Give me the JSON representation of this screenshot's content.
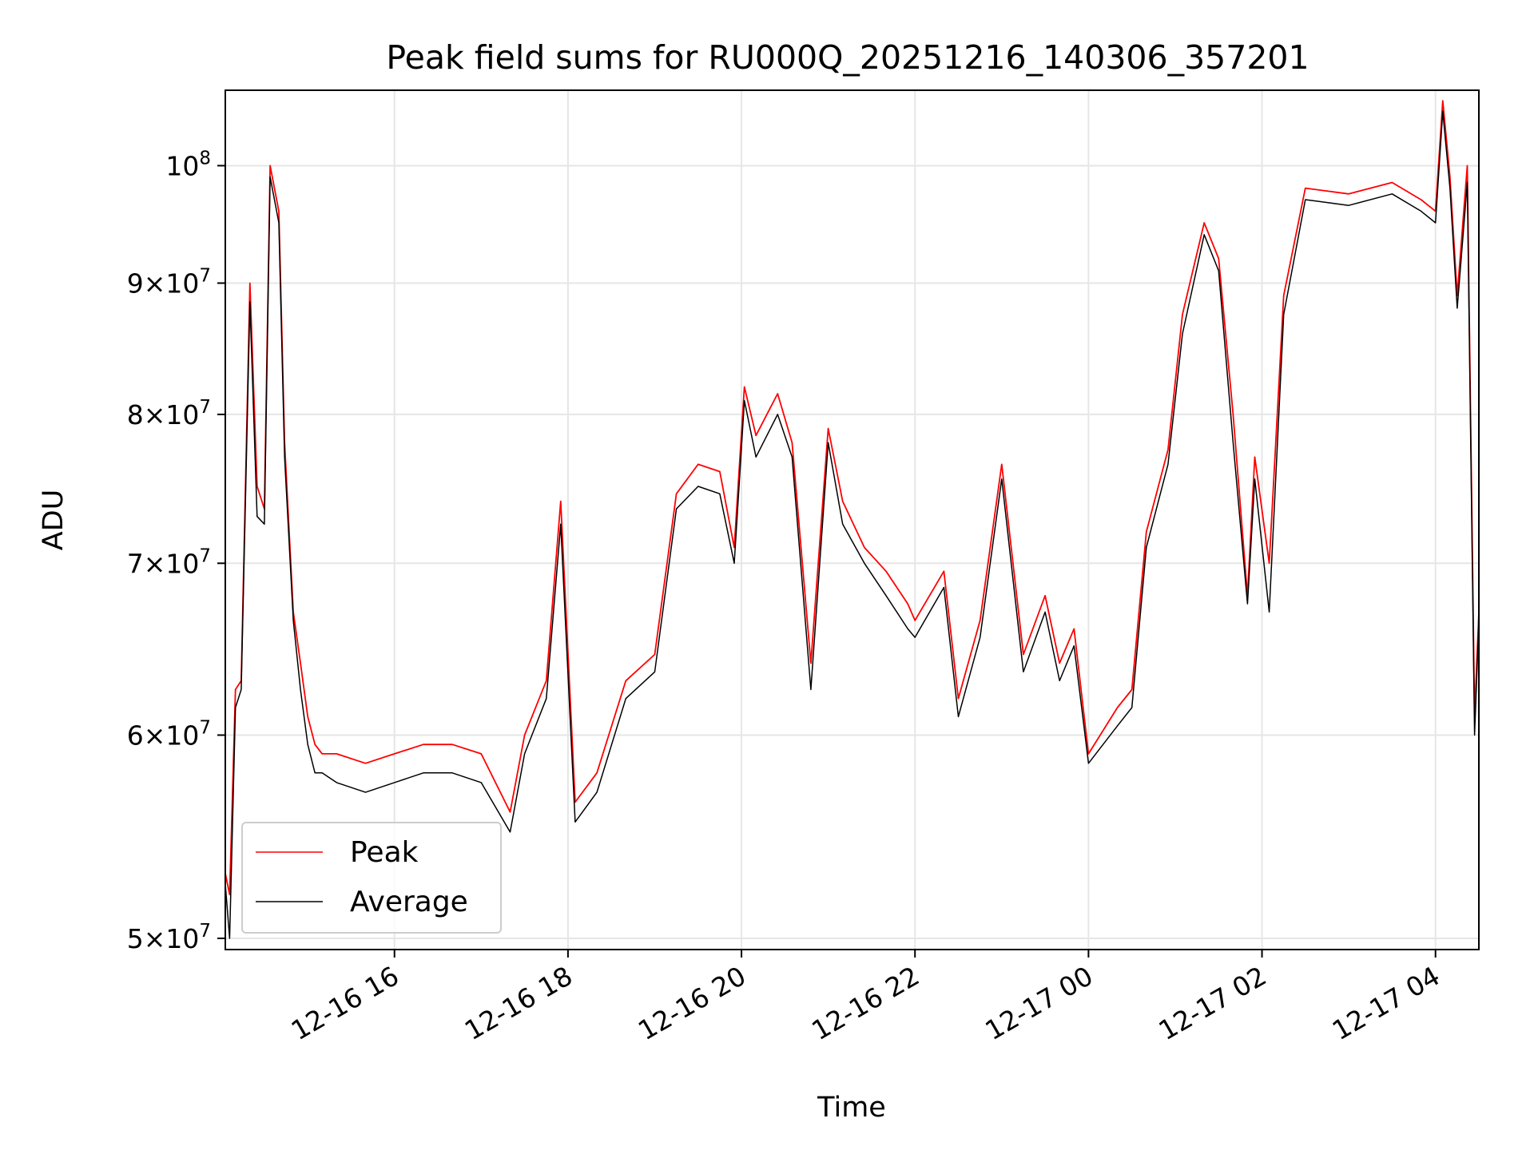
{
  "chart_data": {
    "type": "line",
    "title": "Peak field sums for RU000Q_20251216_140306_357201",
    "xlabel": "Time",
    "ylabel": "ADU",
    "yscale": "log",
    "ylim": [
      49500000,
      107000000
    ],
    "xlim": [
      "2025-12-16 14:03",
      "2025-12-17 04:30"
    ],
    "grid": true,
    "legend_position": "lower-left",
    "x_ticks": [
      {
        "value": "2025-12-16 16:00",
        "label": "12-16 16"
      },
      {
        "value": "2025-12-16 18:00",
        "label": "12-16 18"
      },
      {
        "value": "2025-12-16 20:00",
        "label": "12-16 20"
      },
      {
        "value": "2025-12-16 22:00",
        "label": "12-16 22"
      },
      {
        "value": "2025-12-17 00:00",
        "label": "12-17 00"
      },
      {
        "value": "2025-12-17 02:00",
        "label": "12-17 02"
      },
      {
        "value": "2025-12-17 04:00",
        "label": "12-17 04"
      }
    ],
    "y_ticks": [
      {
        "value": 50000000,
        "mantissa": "5",
        "exponent": "7"
      },
      {
        "value": 60000000,
        "mantissa": "6",
        "exponent": "7"
      },
      {
        "value": 70000000,
        "mantissa": "7",
        "exponent": "7"
      },
      {
        "value": 80000000,
        "mantissa": "8",
        "exponent": "7"
      },
      {
        "value": 90000000,
        "mantissa": "9",
        "exponent": "7"
      },
      {
        "value": 100000000,
        "mantissa": "",
        "exponent": "8"
      }
    ],
    "series": [
      {
        "name": "Peak",
        "color": "#ff0000",
        "x": [
          "2025-12-16 14:03",
          "2025-12-16 14:06",
          "2025-12-16 14:10",
          "2025-12-16 14:14",
          "2025-12-16 14:20",
          "2025-12-16 14:25",
          "2025-12-16 14:30",
          "2025-12-16 14:34",
          "2025-12-16 14:40",
          "2025-12-16 14:44",
          "2025-12-16 14:50",
          "2025-12-16 14:55",
          "2025-12-16 15:00",
          "2025-12-16 15:05",
          "2025-12-16 15:10",
          "2025-12-16 15:20",
          "2025-12-16 15:40",
          "2025-12-16 16:00",
          "2025-12-16 16:20",
          "2025-12-16 16:40",
          "2025-12-16 17:00",
          "2025-12-16 17:20",
          "2025-12-16 17:30",
          "2025-12-16 17:45",
          "2025-12-16 17:55",
          "2025-12-16 18:05",
          "2025-12-16 18:20",
          "2025-12-16 18:40",
          "2025-12-16 19:00",
          "2025-12-16 19:15",
          "2025-12-16 19:30",
          "2025-12-16 19:45",
          "2025-12-16 19:55",
          "2025-12-16 20:02",
          "2025-12-16 20:10",
          "2025-12-16 20:25",
          "2025-12-16 20:35",
          "2025-12-16 20:48",
          "2025-12-16 21:00",
          "2025-12-16 21:10",
          "2025-12-16 21:25",
          "2025-12-16 21:40",
          "2025-12-16 21:55",
          "2025-12-16 22:00",
          "2025-12-16 22:20",
          "2025-12-16 22:30",
          "2025-12-16 22:45",
          "2025-12-16 23:00",
          "2025-12-16 23:15",
          "2025-12-16 23:30",
          "2025-12-16 23:40",
          "2025-12-16 23:50",
          "2025-12-17 00:00",
          "2025-12-17 00:20",
          "2025-12-17 00:30",
          "2025-12-17 00:40",
          "2025-12-17 00:55",
          "2025-12-17 01:05",
          "2025-12-17 01:20",
          "2025-12-17 01:30",
          "2025-12-17 01:40",
          "2025-12-17 01:50",
          "2025-12-17 01:55",
          "2025-12-17 02:05",
          "2025-12-17 02:15",
          "2025-12-17 02:30",
          "2025-12-17 03:00",
          "2025-12-17 03:30",
          "2025-12-17 03:50",
          "2025-12-17 04:00",
          "2025-12-17 04:05",
          "2025-12-17 04:10",
          "2025-12-17 04:15",
          "2025-12-17 04:22",
          "2025-12-17 04:27",
          "2025-12-17 04:30"
        ],
        "y": [
          53000000,
          52000000,
          62500000,
          63000000,
          90000000,
          75000000,
          73500000,
          100000000,
          96000000,
          78000000,
          67000000,
          64000000,
          61000000,
          59500000,
          59000000,
          59000000,
          58500000,
          59000000,
          59500000,
          59500000,
          59000000,
          56000000,
          60000000,
          63000000,
          74000000,
          56500000,
          58000000,
          63000000,
          64500000,
          74500000,
          76500000,
          76000000,
          71000000,
          82000000,
          78500000,
          81500000,
          78000000,
          64000000,
          79000000,
          74000000,
          71000000,
          69500000,
          67500000,
          66500000,
          69500000,
          62000000,
          66500000,
          76500000,
          64500000,
          68000000,
          64000000,
          66000000,
          59000000,
          61500000,
          62500000,
          72000000,
          77500000,
          87500000,
          95000000,
          92000000,
          80000000,
          68000000,
          77000000,
          70000000,
          89000000,
          98000000,
          97500000,
          98500000,
          97000000,
          96000000,
          106000000,
          99000000,
          89000000,
          100000000,
          61000000,
          67000000
        ]
      },
      {
        "name": "Average",
        "color": "#000000",
        "x": [
          "2025-12-16 14:03",
          "2025-12-16 14:06",
          "2025-12-16 14:10",
          "2025-12-16 14:14",
          "2025-12-16 14:20",
          "2025-12-16 14:25",
          "2025-12-16 14:30",
          "2025-12-16 14:34",
          "2025-12-16 14:40",
          "2025-12-16 14:44",
          "2025-12-16 14:50",
          "2025-12-16 14:55",
          "2025-12-16 15:00",
          "2025-12-16 15:05",
          "2025-12-16 15:10",
          "2025-12-16 15:20",
          "2025-12-16 15:40",
          "2025-12-16 16:00",
          "2025-12-16 16:20",
          "2025-12-16 16:40",
          "2025-12-16 17:00",
          "2025-12-16 17:20",
          "2025-12-16 17:30",
          "2025-12-16 17:45",
          "2025-12-16 17:55",
          "2025-12-16 18:05",
          "2025-12-16 18:20",
          "2025-12-16 18:40",
          "2025-12-16 19:00",
          "2025-12-16 19:15",
          "2025-12-16 19:30",
          "2025-12-16 19:45",
          "2025-12-16 19:55",
          "2025-12-16 20:02",
          "2025-12-16 20:10",
          "2025-12-16 20:25",
          "2025-12-16 20:35",
          "2025-12-16 20:48",
          "2025-12-16 21:00",
          "2025-12-16 21:10",
          "2025-12-16 21:25",
          "2025-12-16 21:40",
          "2025-12-16 21:55",
          "2025-12-16 22:00",
          "2025-12-16 22:20",
          "2025-12-16 22:30",
          "2025-12-16 22:45",
          "2025-12-16 23:00",
          "2025-12-16 23:15",
          "2025-12-16 23:30",
          "2025-12-16 23:40",
          "2025-12-16 23:50",
          "2025-12-17 00:00",
          "2025-12-17 00:20",
          "2025-12-17 00:30",
          "2025-12-17 00:40",
          "2025-12-17 00:55",
          "2025-12-17 01:05",
          "2025-12-17 01:20",
          "2025-12-17 01:30",
          "2025-12-17 01:40",
          "2025-12-17 01:50",
          "2025-12-17 01:55",
          "2025-12-17 02:05",
          "2025-12-17 02:15",
          "2025-12-17 02:30",
          "2025-12-17 03:00",
          "2025-12-17 03:30",
          "2025-12-17 03:50",
          "2025-12-17 04:00",
          "2025-12-17 04:05",
          "2025-12-17 04:10",
          "2025-12-17 04:15",
          "2025-12-17 04:22",
          "2025-12-17 04:27",
          "2025-12-17 04:30"
        ],
        "y": [
          52500000,
          50000000,
          61500000,
          62500000,
          88500000,
          73000000,
          72500000,
          99000000,
          95000000,
          77000000,
          66500000,
          62500000,
          59500000,
          58000000,
          58000000,
          57500000,
          57000000,
          57500000,
          58000000,
          58000000,
          57500000,
          55000000,
          59000000,
          62000000,
          72500000,
          55500000,
          57000000,
          62000000,
          63500000,
          73500000,
          75000000,
          74500000,
          70000000,
          81000000,
          77000000,
          80000000,
          77000000,
          62500000,
          78000000,
          72500000,
          70000000,
          68000000,
          66000000,
          65500000,
          68500000,
          61000000,
          65500000,
          75500000,
          63500000,
          67000000,
          63000000,
          65000000,
          58500000,
          60500000,
          61500000,
          71000000,
          76500000,
          86000000,
          94000000,
          91000000,
          78000000,
          67500000,
          75500000,
          67000000,
          87500000,
          97000000,
          96500000,
          97500000,
          96000000,
          95000000,
          105000000,
          98000000,
          88000000,
          98500000,
          60000000,
          66500000
        ]
      }
    ]
  }
}
